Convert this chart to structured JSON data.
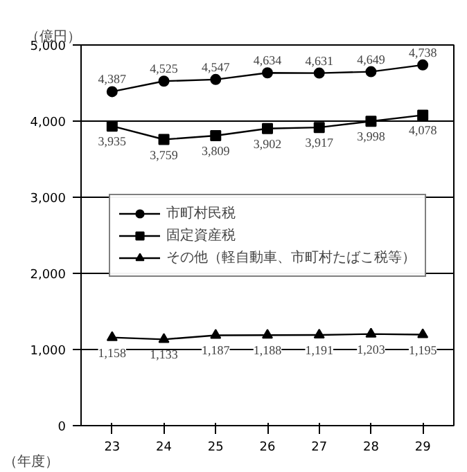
{
  "chart_data": {
    "type": "line",
    "ylabel": "（億円）",
    "xlabel": "（年度）",
    "categories": [
      "23",
      "24",
      "25",
      "26",
      "27",
      "28",
      "29"
    ],
    "series": [
      {
        "name": "市町村民税",
        "color": "#000000",
        "marker": "circle",
        "values": [
          4387,
          4525,
          4547,
          4634,
          4631,
          4649,
          4738
        ],
        "value_labels": [
          "4,387",
          "4,525",
          "4,547",
          "4,634",
          "4,631",
          "4,649",
          "4,738"
        ]
      },
      {
        "name": "固定資産税",
        "color": "#000000",
        "marker": "square",
        "values": [
          3935,
          3759,
          3809,
          3902,
          3917,
          3998,
          4078
        ],
        "value_labels": [
          "3,935",
          "3,759",
          "3,809",
          "3,902",
          "3,917",
          "3,998",
          "4,078"
        ]
      },
      {
        "name": "その他（軽自動車、市町村たばこ税等）",
        "color": "#000000",
        "marker": "triangle",
        "values": [
          1158,
          1133,
          1187,
          1188,
          1191,
          1203,
          1195
        ],
        "value_labels": [
          "1,158",
          "1,133",
          "1,187",
          "1,188",
          "1,191",
          "1,203",
          "1,195"
        ]
      }
    ],
    "ylim": [
      0,
      5000
    ],
    "yticks": [
      {
        "value": 0,
        "label": "0"
      },
      {
        "value": 1000,
        "label": "1,000"
      },
      {
        "value": 2000,
        "label": "2,000"
      },
      {
        "value": 3000,
        "label": "3,000"
      },
      {
        "value": 4000,
        "label": "4,000"
      },
      {
        "value": 5000,
        "label": "5,000"
      }
    ],
    "grid": "y",
    "legend": "center",
    "line_style": "solid"
  }
}
